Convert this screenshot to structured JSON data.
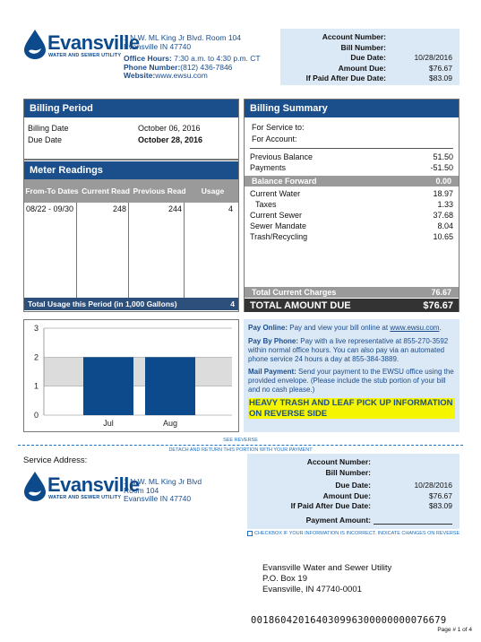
{
  "header": {
    "logo_name": "Evansville",
    "logo_sub": "WATER AND SEWER UTILITY",
    "address1": "1 N.W. ML King Jr Blvd. Room 104",
    "address2": "Evansville IN 47740",
    "office_label": "Office Hours:",
    "office_value": "7:30 a.m. to 4:30 p.m. CT",
    "phone_label": "Phone Number:",
    "phone_value": "(812) 436-7846",
    "web_label": "Website:",
    "web_value": "www.ewsu.com"
  },
  "account_box": {
    "account_number_label": "Account Number:",
    "bill_number_label": "Bill Number:",
    "due_date_label": "Due Date:",
    "due_date_value": "10/28/2016",
    "amount_due_label": "Amount Due:",
    "amount_due_value": "$76.67",
    "late_label": "If Paid After Due Date:",
    "late_value": "$83.09"
  },
  "billing_period": {
    "title": "Billing Period",
    "billing_date_label": "Billing Date",
    "billing_date_value": "October 06, 2016",
    "due_date_label": "Due Date",
    "due_date_value": "October 28, 2016"
  },
  "meter": {
    "title": "Meter Readings",
    "col_dates": "From-To Dates",
    "col_current": "Current Read",
    "col_previous": "Previous Read",
    "col_usage": "Usage",
    "row_dates": "08/22 - 09/30",
    "row_current": "248",
    "row_previous": "244",
    "row_usage": "4",
    "total_label": "Total Usage this Period (in 1,000 Gallons)",
    "total_value": "4"
  },
  "summary": {
    "title": "Billing Summary",
    "service_to_label": "For Service to:",
    "account_label": "For Account:",
    "prev_balance_label": "Previous Balance",
    "prev_balance_value": "51.50",
    "payments_label": "Payments",
    "payments_value": "-51.50",
    "balance_forward_label": "Balance Forward",
    "balance_forward_value": "0.00",
    "current_water_label": "Current Water",
    "current_water_value": "18.97",
    "taxes_label": "Taxes",
    "taxes_value": "1.33",
    "current_sewer_label": "Current Sewer",
    "current_sewer_value": "37.68",
    "sewer_mandate_label": "Sewer Mandate",
    "sewer_mandate_value": "8.04",
    "trash_label": "Trash/Recycling",
    "trash_value": "10.65",
    "total_charges_label": "Total Current Charges",
    "total_charges_value": "76.67",
    "total_due_label": "TOTAL AMOUNT DUE",
    "total_due_value": "$76.67"
  },
  "chart_data": {
    "type": "bar",
    "categories": [
      "Jul",
      "Aug"
    ],
    "values": [
      2,
      2
    ],
    "ylim": [
      0,
      3
    ],
    "yticks": [
      "0",
      "1",
      "2",
      "3"
    ],
    "bar_color": "#0d4a8c",
    "band_color": "#dcdcdc"
  },
  "payment_info": {
    "online_label": "Pay Online:",
    "online_text": "Pay and view your bill online at",
    "online_link": "www.ewsu.com",
    "phone_label": "Pay By Phone:",
    "phone_text": "Pay with a live representative at 855-270-3592 within normal office hours. You can also pay via an automated phone service 24 hours a day at 855-384-3889.",
    "mail_label": "Mail Payment:",
    "mail_text": "Send your payment to the EWSU office using the provided envelope. (Please include the stub portion of your bill and no cash please.)",
    "notice": "HEAVY TRASH AND LEAF PICK UP INFORMATION ON REVERSE SIDE"
  },
  "stub": {
    "see_reverse": "SEE REVERSE",
    "detach": "DETACH AND RETURN THIS PORTION WITH YOUR PAYMENT",
    "service_address_label": "Service Address:",
    "address1": "1 N.W. ML King Jr Blvd",
    "address2": "Room 104",
    "address3": "Evansville IN 47740",
    "account_number_label": "Account Number:",
    "bill_number_label": "Bill Number:",
    "due_date_label": "Due Date:",
    "due_date_value": "10/28/2016",
    "amount_due_label": "Amount Due:",
    "amount_due_value": "$76.67",
    "late_label": "If Paid After Due Date:",
    "late_value": "$83.09",
    "payment_amount_label": "Payment Amount:",
    "checkbox_text": "CHECKBOX IF YOUR INFORMATION IS INCORRECT. INDICATE CHANGES ON REVERSE",
    "remit1": "Evansville Water and Sewer Utility",
    "remit2": "P.O. Box 19",
    "remit3": "Evansville, IN 47740-0001",
    "scanline": "001860420164030996300000000076679",
    "page": "Page # 1 of 4"
  }
}
